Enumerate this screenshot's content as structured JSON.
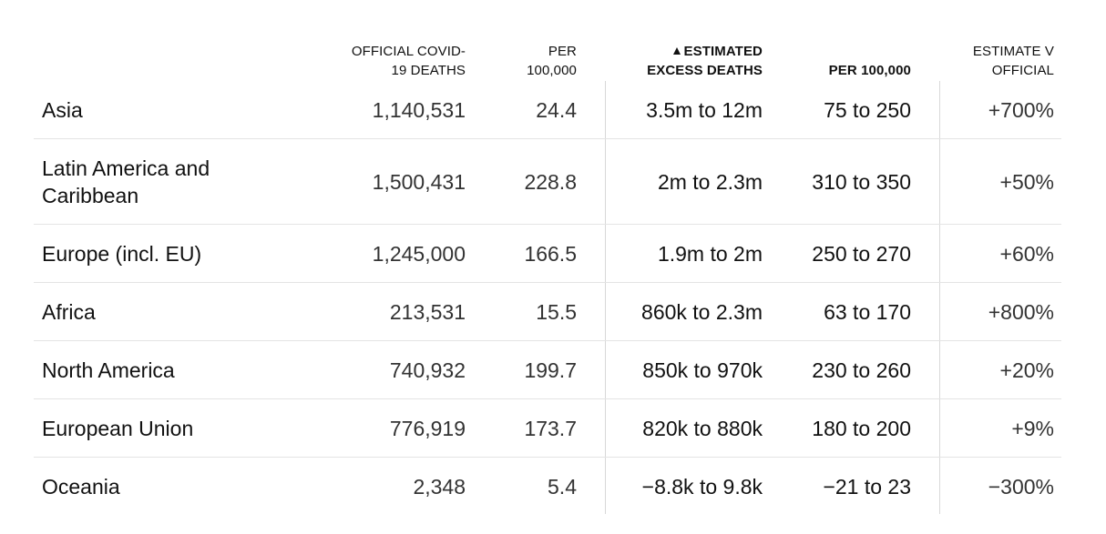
{
  "headers": {
    "official": [
      "OFFICIAL COVID-",
      "19 DEATHS"
    ],
    "per1": [
      "PER",
      "100,000"
    ],
    "excess": [
      "ESTIMATED",
      "EXCESS DEATHS"
    ],
    "per2": "PER 100,000",
    "estimate": [
      "ESTIMATE V",
      "OFFICIAL"
    ]
  },
  "rows": [
    {
      "region": "Asia",
      "official": "1,140,531",
      "per1": "24.4",
      "excess": "3.5m to 12m",
      "per2": "75 to 250",
      "estimate": "+700%"
    },
    {
      "region": "Latin America and Caribbean",
      "official": "1,500,431",
      "per1": "228.8",
      "excess": "2m to 2.3m",
      "per2": "310 to 350",
      "estimate": "+50%"
    },
    {
      "region": "Europe (incl. EU)",
      "official": "1,245,000",
      "per1": "166.5",
      "excess": "1.9m to 2m",
      "per2": "250 to 270",
      "estimate": "+60%"
    },
    {
      "region": "Africa",
      "official": "213,531",
      "per1": "15.5",
      "excess": "860k to 2.3m",
      "per2": "63 to 170",
      "estimate": "+800%"
    },
    {
      "region": "North America",
      "official": "740,932",
      "per1": "199.7",
      "excess": "850k to 970k",
      "per2": "230 to 260",
      "estimate": "+20%"
    },
    {
      "region": "European Union",
      "official": "776,919",
      "per1": "173.7",
      "excess": "820k to 880k",
      "per2": "180 to 200",
      "estimate": "+9%"
    },
    {
      "region": "Oceania",
      "official": "2,348",
      "per1": "5.4",
      "excess": "−8.8k to 9.8k",
      "per2": "−21 to 23",
      "estimate": "−300%"
    }
  ]
}
